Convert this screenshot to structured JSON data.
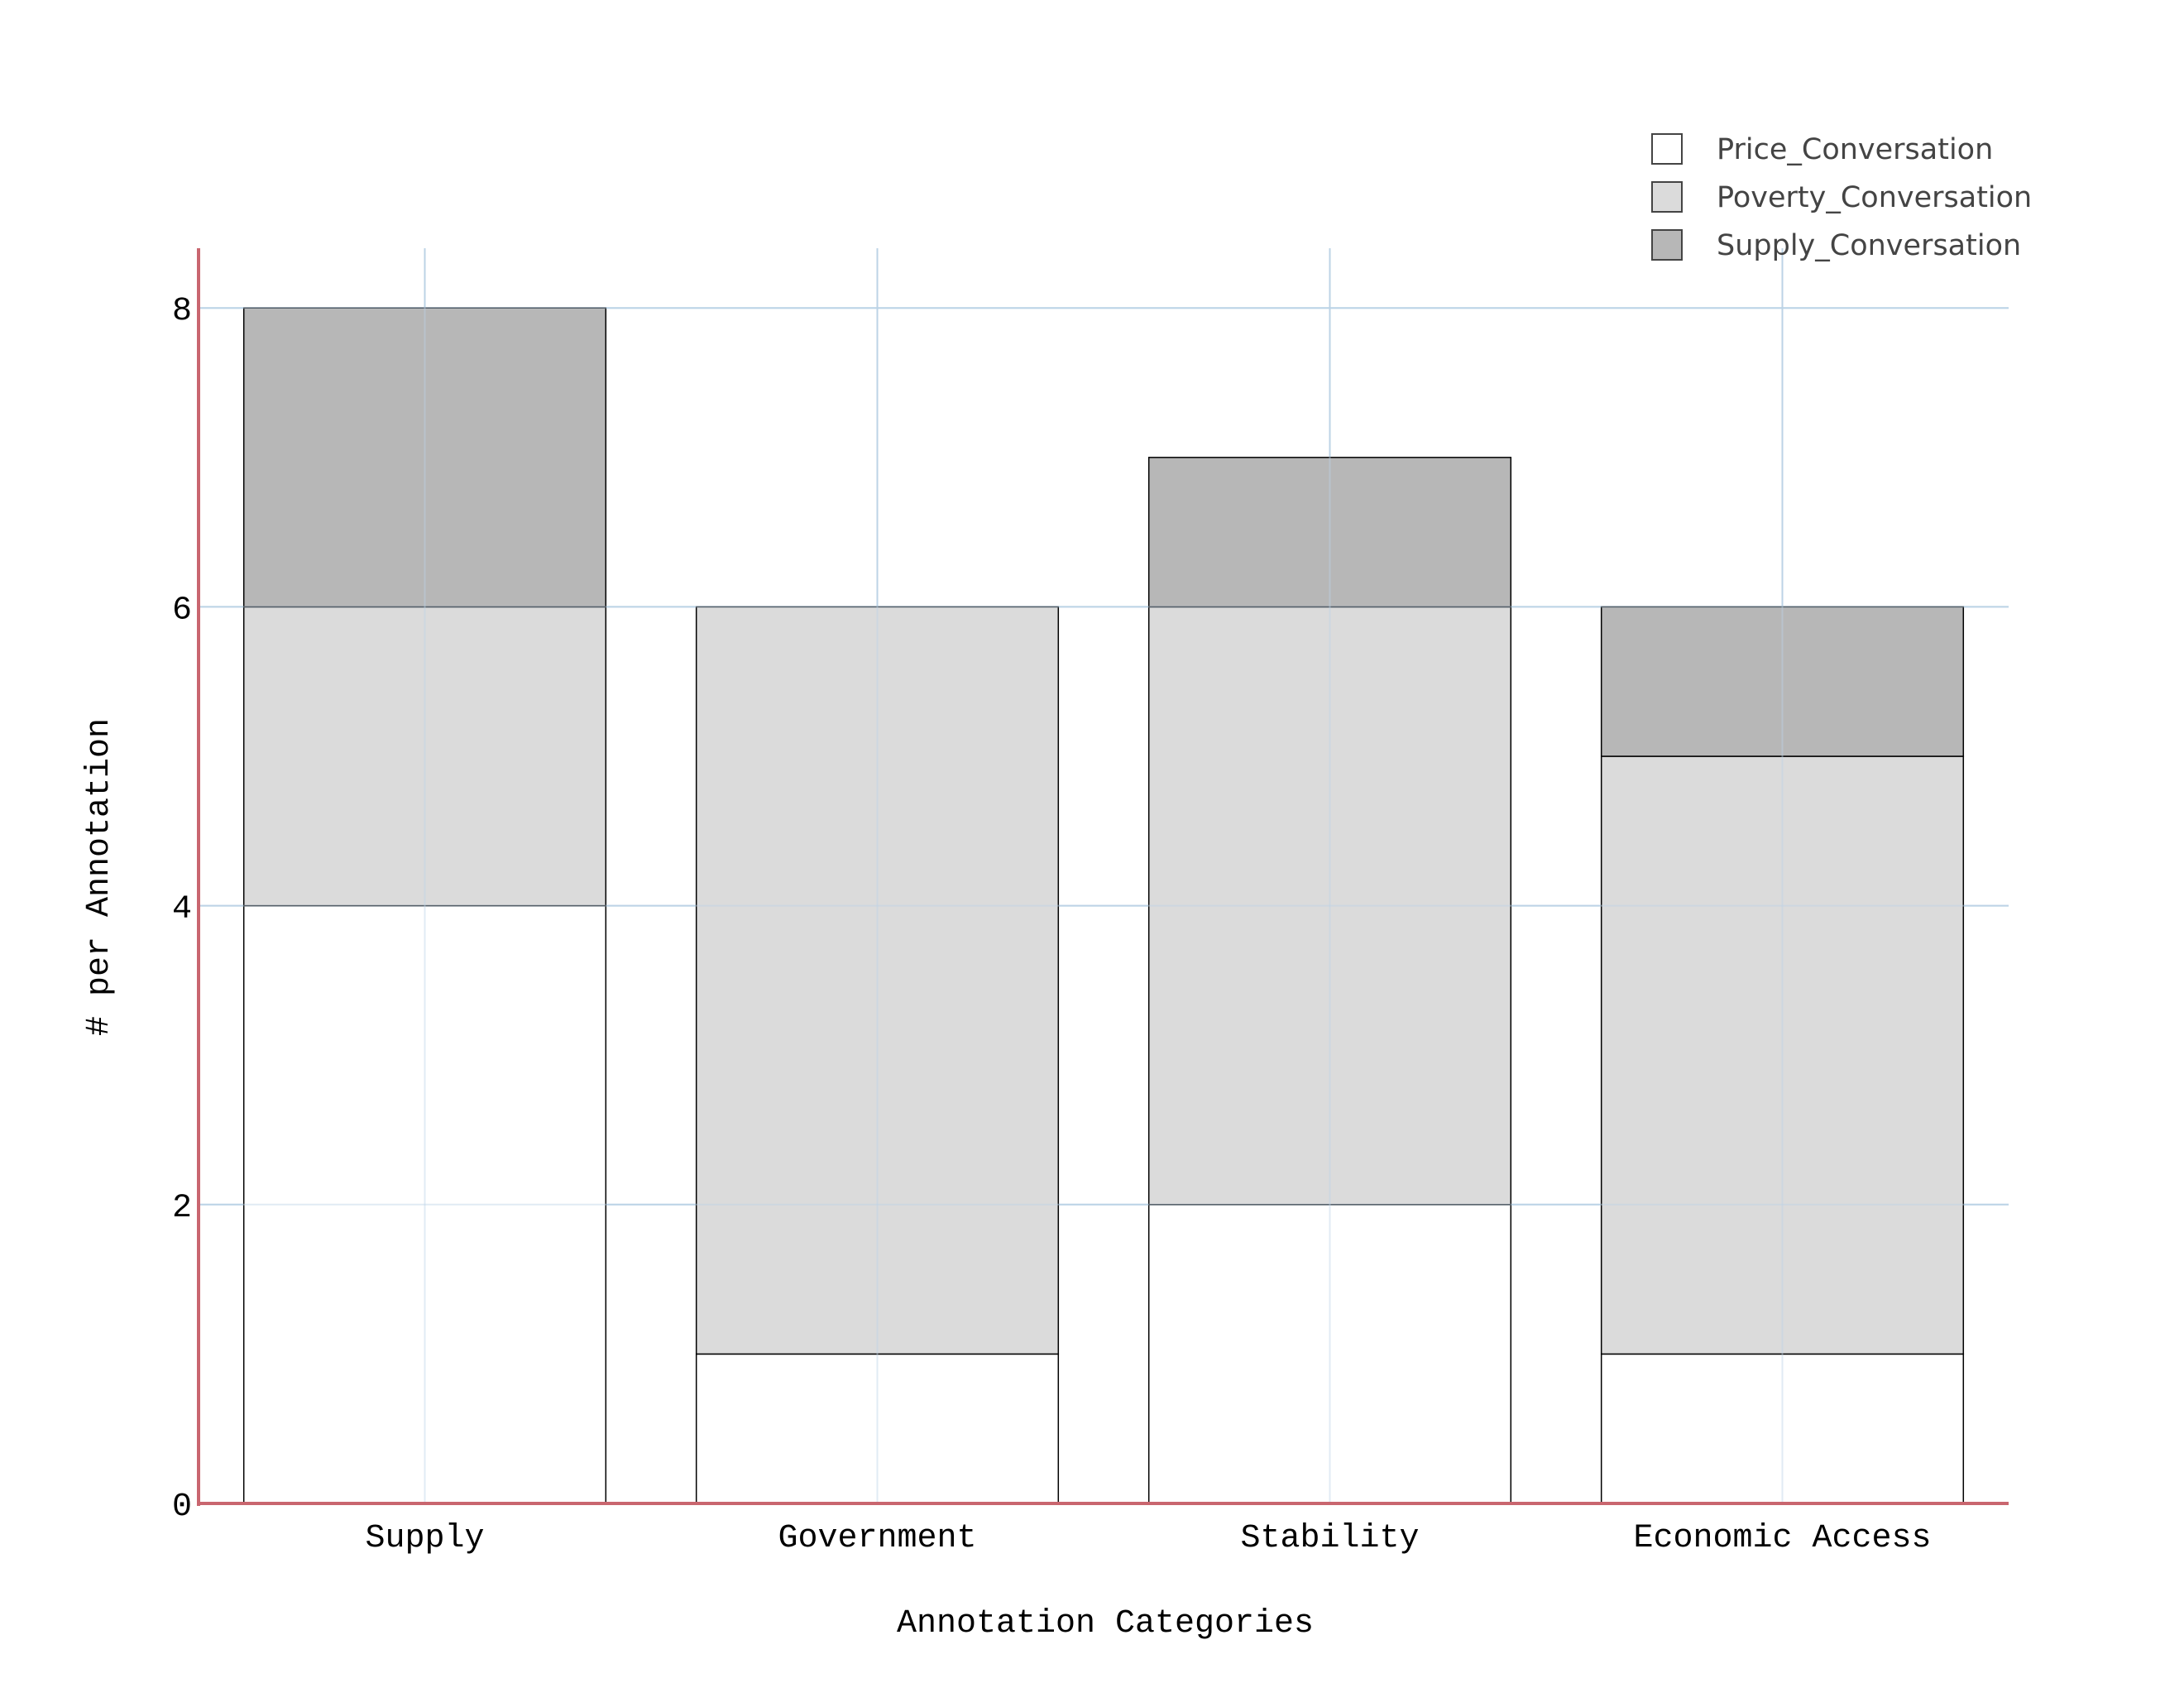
{
  "chart_data": {
    "type": "bar",
    "stacked": true,
    "title": "",
    "xlabel": "Annotation Categories",
    "ylabel": "# per Annotation",
    "categories": [
      "Supply",
      "Government",
      "Stability",
      "Economic Access"
    ],
    "series": [
      {
        "name": "Price_Conversation",
        "values": [
          4,
          1,
          2,
          1
        ],
        "color": "#ffffff"
      },
      {
        "name": "Poverty_Conversation",
        "values": [
          2,
          5,
          4,
          4
        ],
        "color": "#dbdbdb"
      },
      {
        "name": "Supply_Conversation",
        "values": [
          2,
          0,
          1,
          1
        ],
        "color": "#b7b7b7"
      }
    ],
    "ylim": [
      0,
      8.4
    ],
    "yticks": [
      0,
      2,
      4,
      6,
      8
    ],
    "grid": true,
    "legend": "top-right",
    "colors": {
      "grid": "#bcd3e6",
      "axis": "#c9666f",
      "bar_outline": "#000000"
    }
  }
}
